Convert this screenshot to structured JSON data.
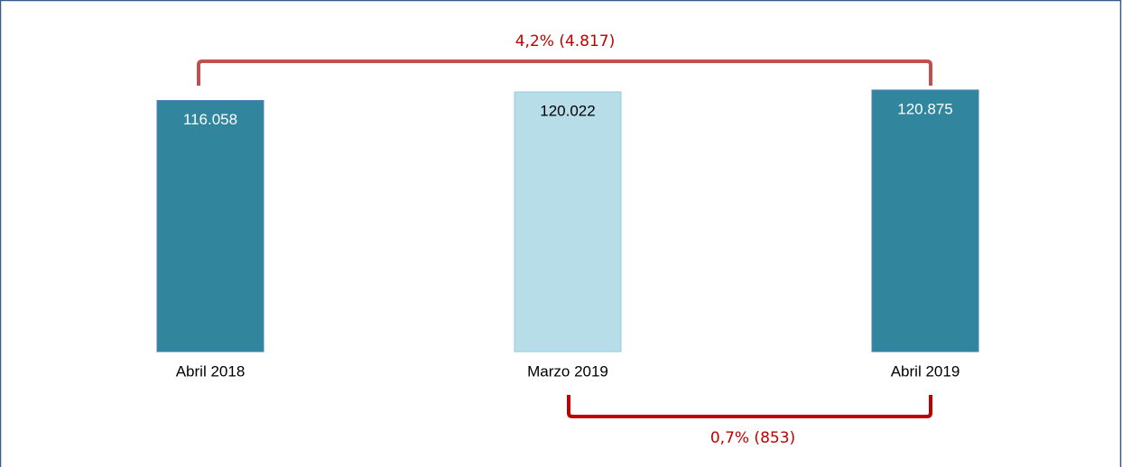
{
  "chart_data": {
    "type": "bar",
    "categories": [
      "Abril 2018",
      "Marzo 2019",
      "Abril 2019"
    ],
    "values": [
      116058,
      120022,
      120875
    ],
    "value_labels": [
      "116.058",
      "120.022",
      "120.875"
    ],
    "colors": [
      "#31859c",
      "#b7dee8",
      "#31859c"
    ],
    "ylim": [
      0,
      125000
    ],
    "annotations": [
      "4,2% (4.817)",
      "0,7% (853)"
    ]
  }
}
